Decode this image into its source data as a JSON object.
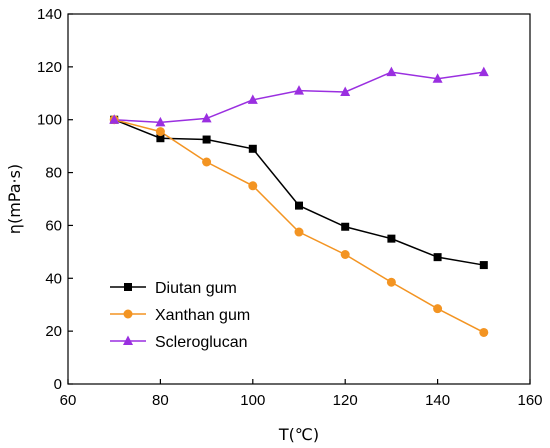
{
  "chart_data": {
    "type": "line",
    "xlabel": "T(℃)",
    "ylabel": "η(mPa·s)",
    "xlim": [
      60,
      160
    ],
    "ylim": [
      0,
      140
    ],
    "xticks": [
      60,
      80,
      100,
      120,
      140,
      160
    ],
    "yticks": [
      0,
      20,
      40,
      60,
      80,
      100,
      120,
      140
    ],
    "x": [
      70,
      80,
      90,
      100,
      110,
      120,
      130,
      140,
      150
    ],
    "grid": false,
    "legend_position": "bottom-left",
    "series": [
      {
        "name": "Diutan gum",
        "marker": "square",
        "color": "#000000",
        "values": [
          100,
          93,
          92.5,
          89,
          67.5,
          59.5,
          55,
          48,
          45
        ]
      },
      {
        "name": "Xanthan gum",
        "marker": "circle",
        "color": "#f39422",
        "values": [
          100,
          95.5,
          84,
          75,
          57.5,
          49,
          38.5,
          28.5,
          19.5
        ]
      },
      {
        "name": "Scleroglucan",
        "marker": "triangle",
        "color": "#9a2fe0",
        "values": [
          100,
          99,
          100.5,
          107.5,
          111,
          110.5,
          118,
          115.5,
          118
        ]
      }
    ]
  }
}
